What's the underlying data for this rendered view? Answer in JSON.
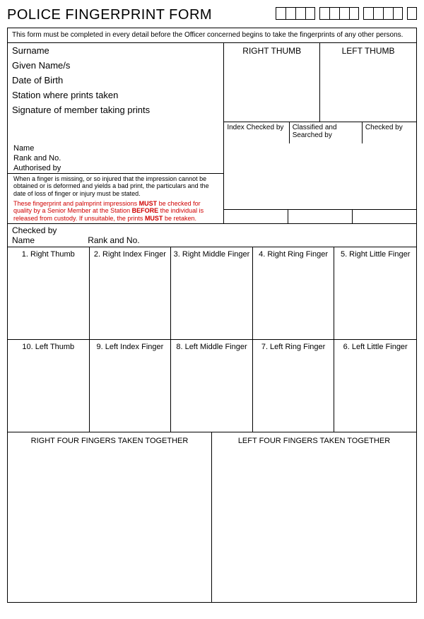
{
  "title": "POLICE FINGERPRINT FORM",
  "codeGroups": [
    4,
    4,
    4,
    1
  ],
  "instruction": "This form must be completed in every detail before the Officer concerned begins to take the fingerprints of any other persons.",
  "fields": {
    "surname": "Surname",
    "given": "Given Name/s",
    "dob": "Date of Birth",
    "station": "Station where prints taken",
    "signature": "Signature of member taking prints"
  },
  "thumbs": {
    "right": "RIGHT THUMB",
    "left": "LEFT THUMB"
  },
  "checks": {
    "index": "Index Checked by",
    "classified": "Classified and Searched by",
    "checked": "Checked by"
  },
  "meta": {
    "name": "Name",
    "rank": "Rank and No.",
    "auth": "Authorised by"
  },
  "note1": "When a finger is missing, or so injured that the impression cannot be obtained or is deformed and yields a bad print, the particulars and the date of loss of finger or injury must be stated.",
  "note2_a": "These fingerprint and palmprint impressions ",
  "note2_b": "MUST",
  "note2_c": " be checked for quality by a Senior Member at the Station ",
  "note2_d": "BEFORE",
  "note2_e": " the individual is released from custody. If unsuitable, the prints ",
  "note2_f": "MUST",
  "note2_g": " be retaken.",
  "checkedBy": {
    "label": "Checked by",
    "name": "Name",
    "rank": "Rank and No."
  },
  "fingersTop": [
    "1. Right Thumb",
    "2. Right Index Finger",
    "3. Right Middle Finger",
    "4. Right Ring Finger",
    "5. Right Little Finger"
  ],
  "fingersBottom": [
    "10. Left Thumb",
    "9. Left Index Finger",
    "8. Left Middle Finger",
    "7. Left Ring Finger",
    "6. Left Little Finger"
  ],
  "four": {
    "right": "RIGHT FOUR FINGERS TAKEN TOGETHER",
    "left": "LEFT FOUR FINGERS TAKEN TOGETHER"
  }
}
